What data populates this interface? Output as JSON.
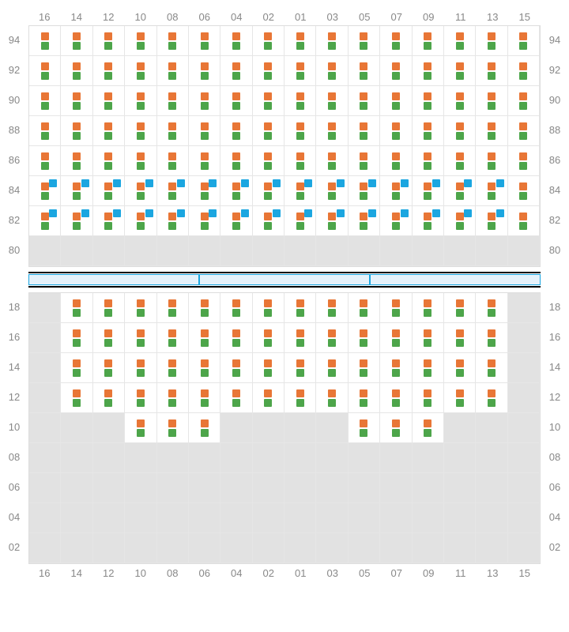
{
  "colors": {
    "orange": "#e87636",
    "green": "#4da54a",
    "blue": "#1ba6e0",
    "emptyBg": "#e2e2e2",
    "gridLine": "#e6e6e6",
    "label": "#888888"
  },
  "columns": [
    "16",
    "14",
    "12",
    "10",
    "08",
    "06",
    "04",
    "02",
    "01",
    "03",
    "05",
    "07",
    "09",
    "11",
    "13",
    "15"
  ],
  "topRows": [
    "94",
    "92",
    "90",
    "88",
    "86",
    "84",
    "82",
    "80"
  ],
  "bottomRows": [
    "18",
    "16",
    "14",
    "12",
    "10",
    "08",
    "06",
    "04",
    "02"
  ],
  "topCells": [
    [
      1,
      1,
      1,
      1,
      1,
      1,
      1,
      1,
      1,
      1,
      1,
      1,
      1,
      1,
      1,
      1
    ],
    [
      1,
      1,
      1,
      1,
      1,
      1,
      1,
      1,
      1,
      1,
      1,
      1,
      1,
      1,
      1,
      1
    ],
    [
      1,
      1,
      1,
      1,
      1,
      1,
      1,
      1,
      1,
      1,
      1,
      1,
      1,
      1,
      1,
      1
    ],
    [
      1,
      1,
      1,
      1,
      1,
      1,
      1,
      1,
      1,
      1,
      1,
      1,
      1,
      1,
      1,
      1
    ],
    [
      1,
      1,
      1,
      1,
      1,
      1,
      1,
      1,
      1,
      1,
      1,
      1,
      1,
      1,
      1,
      1
    ],
    [
      2,
      2,
      2,
      2,
      2,
      2,
      2,
      2,
      2,
      2,
      2,
      2,
      2,
      2,
      2,
      1
    ],
    [
      2,
      2,
      2,
      2,
      2,
      2,
      2,
      2,
      2,
      2,
      2,
      2,
      2,
      2,
      2,
      1
    ],
    [
      0,
      0,
      0,
      0,
      0,
      0,
      0,
      0,
      0,
      0,
      0,
      0,
      0,
      0,
      0,
      0
    ]
  ],
  "bottomCells": [
    [
      0,
      1,
      1,
      1,
      1,
      1,
      1,
      1,
      1,
      1,
      1,
      1,
      1,
      1,
      1,
      0
    ],
    [
      0,
      1,
      1,
      1,
      1,
      1,
      1,
      1,
      1,
      1,
      1,
      1,
      1,
      1,
      1,
      0
    ],
    [
      0,
      1,
      1,
      1,
      1,
      1,
      1,
      1,
      1,
      1,
      1,
      1,
      1,
      1,
      1,
      0
    ],
    [
      0,
      1,
      1,
      1,
      1,
      1,
      1,
      1,
      1,
      1,
      1,
      1,
      1,
      1,
      1,
      0
    ],
    [
      0,
      0,
      0,
      1,
      1,
      1,
      0,
      0,
      0,
      0,
      1,
      1,
      1,
      0,
      0,
      0
    ],
    [
      0,
      0,
      0,
      0,
      0,
      0,
      0,
      0,
      0,
      0,
      0,
      0,
      0,
      0,
      0,
      0
    ],
    [
      0,
      0,
      0,
      0,
      0,
      0,
      0,
      0,
      0,
      0,
      0,
      0,
      0,
      0,
      0,
      0
    ],
    [
      0,
      0,
      0,
      0,
      0,
      0,
      0,
      0,
      0,
      0,
      0,
      0,
      0,
      0,
      0,
      0
    ],
    [
      0,
      0,
      0,
      0,
      0,
      0,
      0,
      0,
      0,
      0,
      0,
      0,
      0,
      0,
      0,
      0
    ]
  ],
  "cellStates": {
    "0": "empty",
    "1": "orange-green",
    "2": "orange-green-blue"
  },
  "dividerSegments": 3
}
